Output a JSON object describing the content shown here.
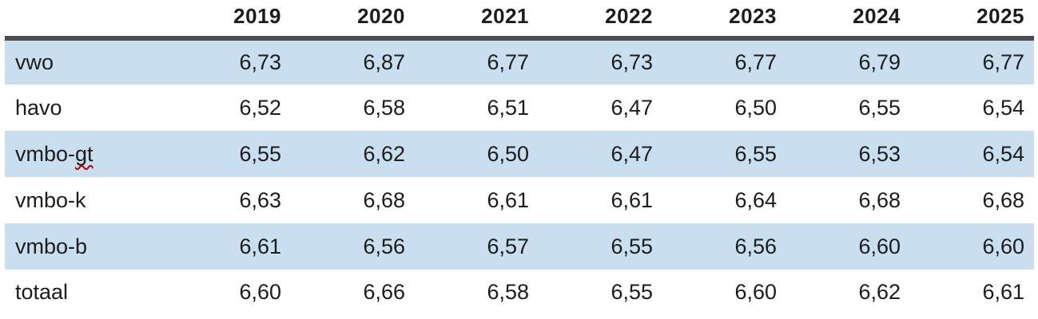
{
  "table": {
    "header": {
      "label_column": "",
      "years": [
        "2019",
        "2020",
        "2021",
        "2022",
        "2023",
        "2024",
        "2025"
      ]
    },
    "rows": [
      {
        "label": "vwo",
        "values": [
          "6,73",
          "6,87",
          "6,77",
          "6,73",
          "6,77",
          "6,79",
          "6,77"
        ]
      },
      {
        "label": "havo",
        "values": [
          "6,52",
          "6,58",
          "6,51",
          "6,47",
          "6,50",
          "6,55",
          "6,54"
        ]
      },
      {
        "label_prefix": "vmbo-",
        "label_misspelled": "gt",
        "values": [
          "6,55",
          "6,62",
          "6,50",
          "6,47",
          "6,55",
          "6,53",
          "6,54"
        ]
      },
      {
        "label": "vmbo-k",
        "values": [
          "6,63",
          "6,68",
          "6,61",
          "6,61",
          "6,64",
          "6,68",
          "6,68"
        ]
      },
      {
        "label": "vmbo-b",
        "values": [
          "6,61",
          "6,56",
          "6,57",
          "6,55",
          "6,56",
          "6,60",
          "6,60"
        ]
      },
      {
        "label": "totaal",
        "values": [
          "6,60",
          "6,66",
          "6,58",
          "6,55",
          "6,60",
          "6,62",
          "6,61"
        ]
      }
    ],
    "colors": {
      "row_shade": "#c9dff0",
      "header_rule": "#4d4d4d",
      "text": "#1c1c1c",
      "spellcheck_underline": "#c00000"
    }
  }
}
